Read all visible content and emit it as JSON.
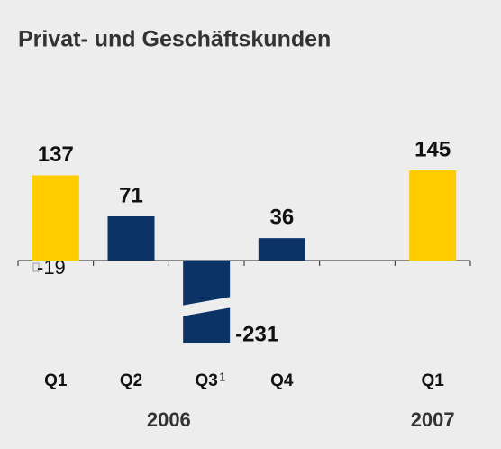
{
  "chart_data": {
    "type": "bar",
    "title": "Privat- und Geschäftskunden",
    "categories": [
      "Q1",
      "Q2",
      "Q3",
      "Q4",
      null,
      "Q1"
    ],
    "category_notes": [
      null,
      null,
      "1",
      null,
      null,
      null
    ],
    "values": [
      137,
      71,
      -231,
      36,
      null,
      145
    ],
    "colors": [
      "#ffcc00",
      "#0b3366",
      "#0b3366",
      "#0b3366",
      null,
      "#ffcc00"
    ],
    "year_labels": [
      "2006",
      "2007"
    ],
    "annotation": "-19"
  }
}
